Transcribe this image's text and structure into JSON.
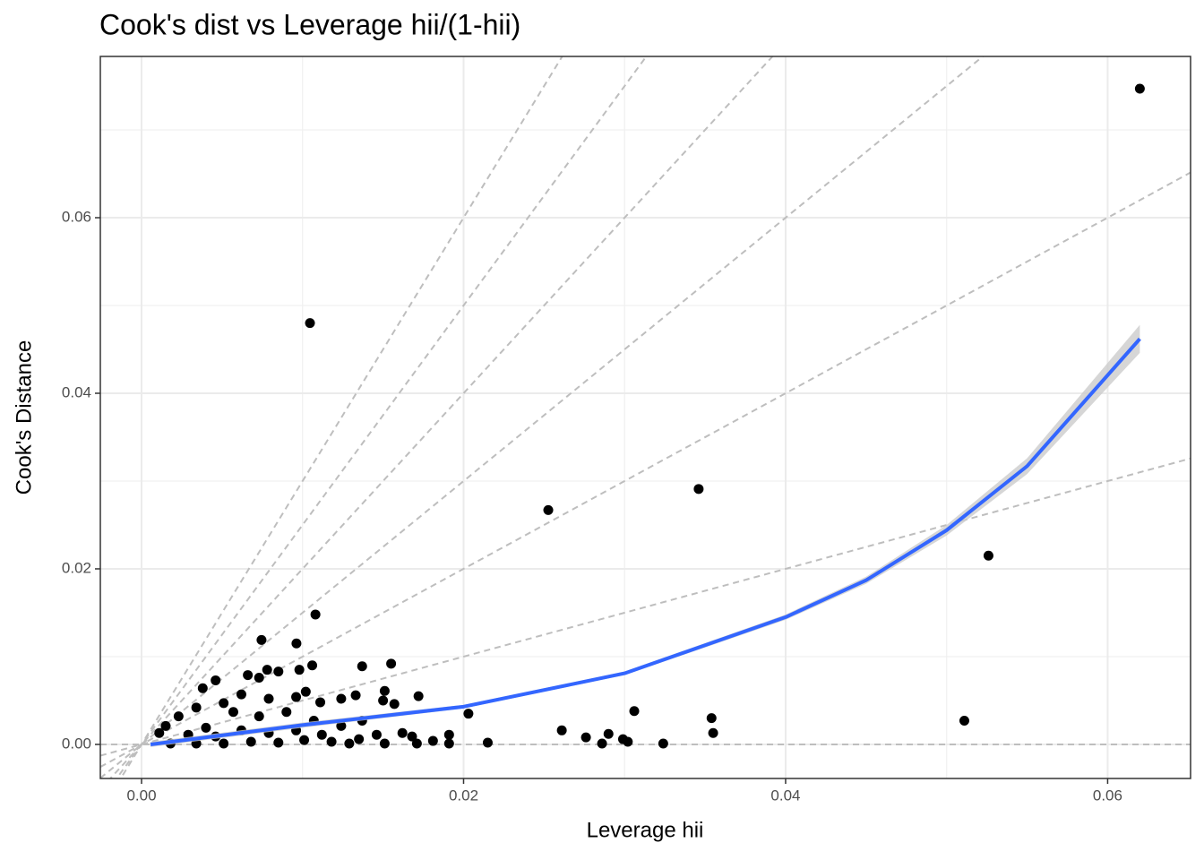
{
  "chart_data": {
    "type": "scatter",
    "title": "Cook's dist vs Leverage hii/(1-hii)",
    "x_label": "Leverage hii",
    "y_label": "Cook's Distance",
    "xlim": [
      -0.00256,
      0.06515
    ],
    "ylim": [
      -0.00388,
      0.07837
    ],
    "xticks": [
      {
        "value": 0,
        "label": "0.00"
      },
      {
        "value": 0.02,
        "label": "0.02"
      },
      {
        "value": 0.04,
        "label": "0.04"
      },
      {
        "value": 0.06,
        "label": "0.06"
      }
    ],
    "yticks": [
      {
        "value": 0,
        "label": "0.00"
      },
      {
        "value": 0.02,
        "label": "0.02"
      },
      {
        "value": 0.04,
        "label": "0.04"
      },
      {
        "value": 0.06,
        "label": "0.06"
      }
    ],
    "x_minor_grid": [
      0.01,
      0.03,
      0.05
    ],
    "y_minor_grid": [
      0.01,
      0.03,
      0.05,
      0.07
    ],
    "grid": true,
    "point_color": "#000000",
    "reference_slopes": [
      0,
      0.5,
      1,
      1.5,
      2,
      2.5,
      3
    ],
    "reference_color": "#bebebe",
    "x": [
      0.062,
      0.01046,
      0.0346,
      0.02526,
      0.0526,
      0.0511,
      0.0108,
      0.00745,
      0.00962,
      0.0155,
      0.0137,
      0.0106,
      0.0203,
      0.0306,
      0.0354,
      0.0355,
      0.0261,
      0.0276,
      0.029,
      0.0299,
      0.0302,
      0.0286,
      0.0324,
      0.0215,
      0.0191,
      0.0191,
      0.0181,
      0.0172,
      0.0157,
      0.0151,
      0.015,
      0.0133,
      0.0124,
      0.0111,
      0.0102,
      0.0098,
      0.0085,
      0.0078,
      0.0066,
      0.0073,
      0.0046,
      0.0038,
      0.0062,
      0.0079,
      0.0096,
      0.0051,
      0.0034,
      0.0023,
      0.0015,
      0.0011,
      0.0057,
      0.0073,
      0.009,
      0.0107,
      0.0124,
      0.0137,
      0.0146,
      0.0162,
      0.0168,
      0.0135,
      0.0118,
      0.0101,
      0.0085,
      0.0068,
      0.0051,
      0.0034,
      0.0018,
      0.004,
      0.0029,
      0.0062,
      0.0079,
      0.0096,
      0.0112,
      0.0046,
      0.0151,
      0.0171,
      0.0129
    ],
    "values": [
      0.0747,
      0.048,
      0.0291,
      0.0267,
      0.0215,
      0.0027,
      0.0148,
      0.0119,
      0.0115,
      0.0092,
      0.0089,
      0.009,
      0.0035,
      0.0038,
      0.003,
      0.0013,
      0.0016,
      0.0008,
      0.0012,
      0.0006,
      0.0003,
      0.0001,
      0.0001,
      0.0002,
      0.0011,
      0.0001,
      0.0004,
      0.0055,
      0.0046,
      0.0061,
      0.005,
      0.0056,
      0.0052,
      0.0048,
      0.006,
      0.0085,
      0.0083,
      0.0085,
      0.0079,
      0.0076,
      0.0073,
      0.0064,
      0.0057,
      0.0052,
      0.0054,
      0.0047,
      0.0042,
      0.0032,
      0.0021,
      0.0013,
      0.0037,
      0.0032,
      0.0037,
      0.0027,
      0.0021,
      0.0027,
      0.0011,
      0.0013,
      0.0009,
      0.0006,
      0.0003,
      0.0005,
      0.0002,
      0.0003,
      0.0001,
      0.0001,
      0.0001,
      0.0019,
      0.0011,
      0.0016,
      0.0013,
      0.0016,
      0.0011,
      0.0009,
      0.0001,
      0.0001,
      0.0001
    ],
    "smooth": {
      "color": "#3366ff",
      "band_color": "#cccccc",
      "x": [
        0.00056,
        0.01,
        0.02,
        0.03,
        0.04,
        0.045,
        0.05,
        0.055,
        0.062
      ],
      "values": [
        0.0,
        0.0022,
        0.0043,
        0.0081,
        0.0145,
        0.0187,
        0.0244,
        0.0317,
        0.0462
      ],
      "lower": [
        -0.0003,
        0.0019,
        0.0041,
        0.0079,
        0.0142,
        0.0183,
        0.0238,
        0.0308,
        0.0446
      ],
      "upper": [
        0.0003,
        0.0025,
        0.0045,
        0.0083,
        0.0148,
        0.0191,
        0.025,
        0.0326,
        0.0478
      ]
    }
  }
}
